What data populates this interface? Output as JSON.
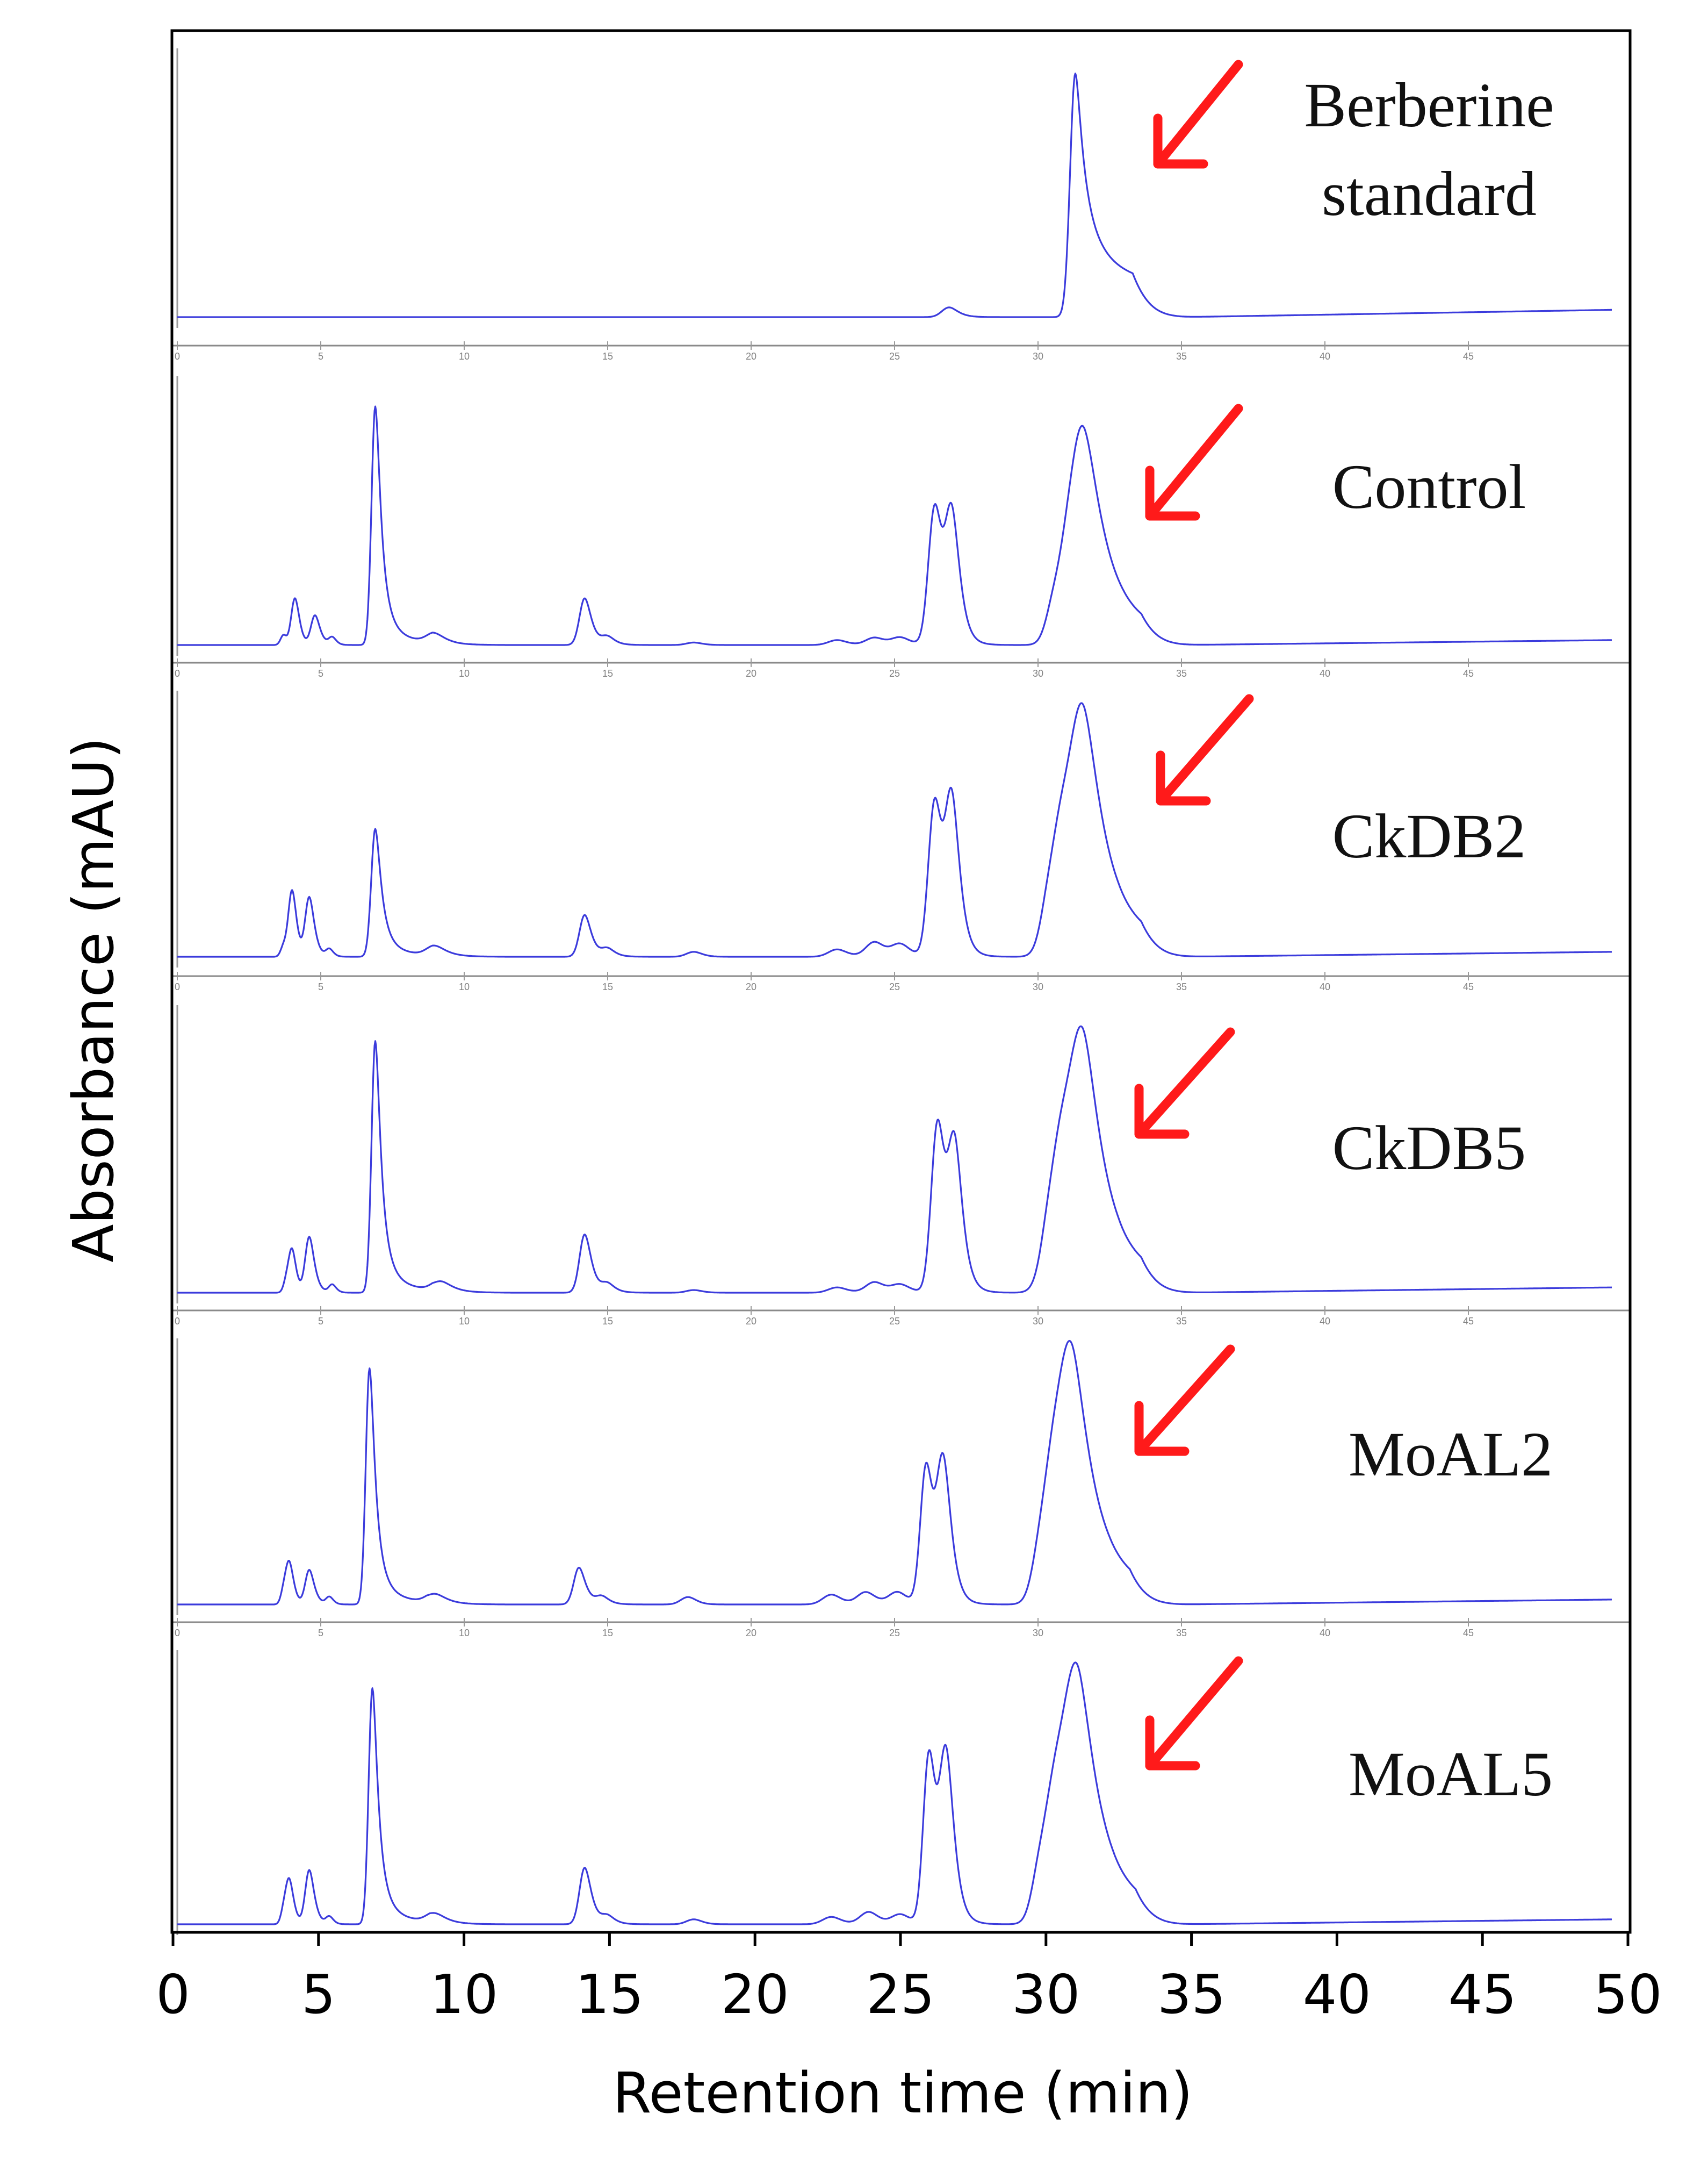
{
  "chart_data": {
    "type": "line",
    "title": "",
    "xlabel": "Retention time (min)",
    "ylabel": "Absorbance (mAU)",
    "xlim": [
      0,
      50
    ],
    "x_ticks": [
      "0",
      "5",
      "10",
      "15",
      "20",
      "25",
      "30",
      "35",
      "40",
      "45",
      "50"
    ],
    "panel_axis_ticks": [
      "0",
      "5",
      "10",
      "15",
      "20",
      "25",
      "30",
      "35",
      "40",
      "45"
    ],
    "y_units": "relative absorbance (0-1, normalized per panel)",
    "annotations": "red arrow points to the berberine peak (~31.5 min) in each panel",
    "series": [
      {
        "name": "Berberine standard",
        "baseline": 0.0,
        "drift": 0.03,
        "peaks": [
          {
            "t": 26.9,
            "h": 0.04,
            "w": 0.25,
            "tail": 0.3
          },
          {
            "t": 31.3,
            "h": 1.0,
            "w": 0.18,
            "tail": 0.9
          }
        ]
      },
      {
        "name": "Control",
        "baseline": 0.0,
        "drift": 0.02,
        "peaks": [
          {
            "t": 3.7,
            "h": 0.04,
            "w": 0.1,
            "tail": 0.1
          },
          {
            "t": 4.1,
            "h": 0.19,
            "w": 0.13,
            "tail": 0.25
          },
          {
            "t": 4.8,
            "h": 0.12,
            "w": 0.14,
            "tail": 0.3
          },
          {
            "t": 5.4,
            "h": 0.03,
            "w": 0.12,
            "tail": 0.2
          },
          {
            "t": 6.9,
            "h": 0.97,
            "w": 0.13,
            "tail": 0.55
          },
          {
            "t": 9.0,
            "h": 0.04,
            "w": 0.3,
            "tail": 0.4
          },
          {
            "t": 14.2,
            "h": 0.19,
            "w": 0.18,
            "tail": 0.35
          },
          {
            "t": 15.0,
            "h": 0.03,
            "w": 0.2,
            "tail": 0.3
          },
          {
            "t": 18.0,
            "h": 0.01,
            "w": 0.25,
            "tail": 0.2
          },
          {
            "t": 23.0,
            "h": 0.02,
            "w": 0.3,
            "tail": 0.2
          },
          {
            "t": 24.3,
            "h": 0.03,
            "w": 0.3,
            "tail": 0.2
          },
          {
            "t": 25.2,
            "h": 0.03,
            "w": 0.3,
            "tail": 0.2
          },
          {
            "t": 26.4,
            "h": 0.56,
            "w": 0.22,
            "tail": 0.25
          },
          {
            "t": 27.0,
            "h": 0.5,
            "w": 0.22,
            "tail": 0.3
          },
          {
            "t": 30.5,
            "h": 0.08,
            "w": 0.25,
            "tail": 0.2
          },
          {
            "t": 31.0,
            "h": 0.22,
            "w": 0.4,
            "tail": 0.3
          },
          {
            "t": 31.6,
            "h": 0.78,
            "w": 0.45,
            "tail": 0.6
          }
        ]
      },
      {
        "name": "CkDB2",
        "baseline": 0.0,
        "drift": 0.02,
        "peaks": [
          {
            "t": 3.7,
            "h": 0.04,
            "w": 0.1,
            "tail": 0.1
          },
          {
            "t": 4.0,
            "h": 0.27,
            "w": 0.13,
            "tail": 0.25
          },
          {
            "t": 4.6,
            "h": 0.24,
            "w": 0.14,
            "tail": 0.3
          },
          {
            "t": 5.3,
            "h": 0.03,
            "w": 0.12,
            "tail": 0.2
          },
          {
            "t": 6.9,
            "h": 0.52,
            "w": 0.14,
            "tail": 0.55
          },
          {
            "t": 9.0,
            "h": 0.04,
            "w": 0.3,
            "tail": 0.4
          },
          {
            "t": 14.2,
            "h": 0.17,
            "w": 0.18,
            "tail": 0.35
          },
          {
            "t": 15.0,
            "h": 0.03,
            "w": 0.2,
            "tail": 0.3
          },
          {
            "t": 18.0,
            "h": 0.02,
            "w": 0.25,
            "tail": 0.2
          },
          {
            "t": 23.0,
            "h": 0.03,
            "w": 0.3,
            "tail": 0.2
          },
          {
            "t": 24.3,
            "h": 0.06,
            "w": 0.3,
            "tail": 0.2
          },
          {
            "t": 25.2,
            "h": 0.05,
            "w": 0.3,
            "tail": 0.2
          },
          {
            "t": 26.4,
            "h": 0.63,
            "w": 0.22,
            "tail": 0.25
          },
          {
            "t": 27.0,
            "h": 0.6,
            "w": 0.22,
            "tail": 0.3
          },
          {
            "t": 30.3,
            "h": 0.08,
            "w": 0.25,
            "tail": 0.2
          },
          {
            "t": 30.8,
            "h": 0.45,
            "w": 0.4,
            "tail": 0.3
          },
          {
            "t": 31.6,
            "h": 0.88,
            "w": 0.45,
            "tail": 0.6
          }
        ]
      },
      {
        "name": "CkDB5",
        "baseline": 0.0,
        "drift": 0.02,
        "peaks": [
          {
            "t": 3.8,
            "h": 0.04,
            "w": 0.1,
            "tail": 0.1
          },
          {
            "t": 4.0,
            "h": 0.16,
            "w": 0.12,
            "tail": 0.25
          },
          {
            "t": 4.6,
            "h": 0.21,
            "w": 0.14,
            "tail": 0.3
          },
          {
            "t": 5.4,
            "h": 0.03,
            "w": 0.12,
            "tail": 0.2
          },
          {
            "t": 6.9,
            "h": 0.95,
            "w": 0.13,
            "tail": 0.55
          },
          {
            "t": 9.2,
            "h": 0.04,
            "w": 0.3,
            "tail": 0.4
          },
          {
            "t": 14.2,
            "h": 0.22,
            "w": 0.18,
            "tail": 0.35
          },
          {
            "t": 15.0,
            "h": 0.03,
            "w": 0.2,
            "tail": 0.3
          },
          {
            "t": 18.0,
            "h": 0.01,
            "w": 0.25,
            "tail": 0.2
          },
          {
            "t": 23.0,
            "h": 0.02,
            "w": 0.3,
            "tail": 0.2
          },
          {
            "t": 24.3,
            "h": 0.04,
            "w": 0.3,
            "tail": 0.2
          },
          {
            "t": 25.2,
            "h": 0.03,
            "w": 0.3,
            "tail": 0.2
          },
          {
            "t": 26.5,
            "h": 0.64,
            "w": 0.22,
            "tail": 0.25
          },
          {
            "t": 27.1,
            "h": 0.52,
            "w": 0.22,
            "tail": 0.3
          },
          {
            "t": 30.3,
            "h": 0.07,
            "w": 0.25,
            "tail": 0.2
          },
          {
            "t": 30.8,
            "h": 0.5,
            "w": 0.42,
            "tail": 0.3
          },
          {
            "t": 31.6,
            "h": 0.82,
            "w": 0.45,
            "tail": 0.6
          }
        ]
      },
      {
        "name": "MoAL2",
        "baseline": 0.0,
        "drift": 0.02,
        "peaks": [
          {
            "t": 3.7,
            "h": 0.04,
            "w": 0.1,
            "tail": 0.1
          },
          {
            "t": 3.9,
            "h": 0.17,
            "w": 0.13,
            "tail": 0.25
          },
          {
            "t": 4.6,
            "h": 0.14,
            "w": 0.14,
            "tail": 0.3
          },
          {
            "t": 5.3,
            "h": 0.03,
            "w": 0.12,
            "tail": 0.2
          },
          {
            "t": 6.7,
            "h": 0.96,
            "w": 0.13,
            "tail": 0.55
          },
          {
            "t": 9.0,
            "h": 0.04,
            "w": 0.3,
            "tail": 0.4
          },
          {
            "t": 14.0,
            "h": 0.15,
            "w": 0.18,
            "tail": 0.35
          },
          {
            "t": 14.8,
            "h": 0.03,
            "w": 0.2,
            "tail": 0.3
          },
          {
            "t": 17.8,
            "h": 0.03,
            "w": 0.25,
            "tail": 0.2
          },
          {
            "t": 22.8,
            "h": 0.04,
            "w": 0.3,
            "tail": 0.2
          },
          {
            "t": 24.0,
            "h": 0.05,
            "w": 0.3,
            "tail": 0.2
          },
          {
            "t": 25.1,
            "h": 0.05,
            "w": 0.3,
            "tail": 0.2
          },
          {
            "t": 26.1,
            "h": 0.56,
            "w": 0.2,
            "tail": 0.25
          },
          {
            "t": 26.7,
            "h": 0.56,
            "w": 0.22,
            "tail": 0.3
          },
          {
            "t": 30.0,
            "h": 0.07,
            "w": 0.25,
            "tail": 0.2
          },
          {
            "t": 30.5,
            "h": 0.45,
            "w": 0.4,
            "tail": 0.3
          },
          {
            "t": 31.2,
            "h": 0.88,
            "w": 0.45,
            "tail": 0.6
          }
        ]
      },
      {
        "name": "MoAL5",
        "baseline": 0.0,
        "drift": 0.02,
        "peaks": [
          {
            "t": 3.7,
            "h": 0.04,
            "w": 0.1,
            "tail": 0.1
          },
          {
            "t": 3.9,
            "h": 0.18,
            "w": 0.13,
            "tail": 0.25
          },
          {
            "t": 4.6,
            "h": 0.22,
            "w": 0.14,
            "tail": 0.3
          },
          {
            "t": 5.3,
            "h": 0.03,
            "w": 0.12,
            "tail": 0.2
          },
          {
            "t": 6.8,
            "h": 0.96,
            "w": 0.13,
            "tail": 0.55
          },
          {
            "t": 9.0,
            "h": 0.04,
            "w": 0.3,
            "tail": 0.4
          },
          {
            "t": 14.2,
            "h": 0.23,
            "w": 0.18,
            "tail": 0.35
          },
          {
            "t": 15.0,
            "h": 0.03,
            "w": 0.2,
            "tail": 0.3
          },
          {
            "t": 18.0,
            "h": 0.02,
            "w": 0.25,
            "tail": 0.2
          },
          {
            "t": 22.8,
            "h": 0.03,
            "w": 0.3,
            "tail": 0.2
          },
          {
            "t": 24.1,
            "h": 0.05,
            "w": 0.3,
            "tail": 0.2
          },
          {
            "t": 25.2,
            "h": 0.04,
            "w": 0.3,
            "tail": 0.2
          },
          {
            "t": 26.2,
            "h": 0.69,
            "w": 0.2,
            "tail": 0.25
          },
          {
            "t": 26.8,
            "h": 0.66,
            "w": 0.22,
            "tail": 0.3
          },
          {
            "t": 30.0,
            "h": 0.1,
            "w": 0.25,
            "tail": 0.2
          },
          {
            "t": 30.6,
            "h": 0.5,
            "w": 0.42,
            "tail": 0.3
          },
          {
            "t": 31.4,
            "h": 0.88,
            "w": 0.45,
            "tail": 0.6
          }
        ]
      }
    ]
  },
  "labels": {
    "panel_1": [
      "Berberine",
      "standard"
    ],
    "panel_2": "Control",
    "panel_3": "CkDB2",
    "panel_4": "CkDB5",
    "panel_5": "MoAL2",
    "panel_6": "MoAL5"
  },
  "colors": {
    "trace": "#3b3bdc",
    "arrow": "#ff1a1a",
    "frame": "#000000"
  }
}
